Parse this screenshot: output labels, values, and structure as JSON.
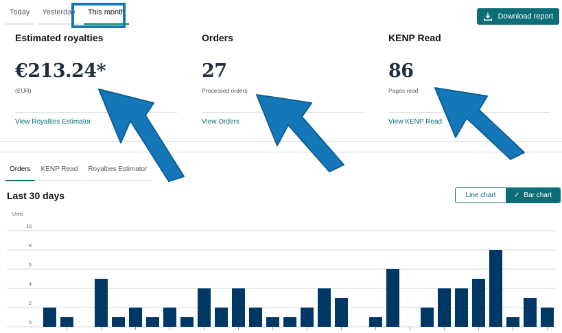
{
  "period_tabs": [
    {
      "label": "Today",
      "active": false
    },
    {
      "label": "Yesterday",
      "active": false
    },
    {
      "label": "This month",
      "active": true
    }
  ],
  "download_label": "Download report",
  "metrics": [
    {
      "title": "Estimated royalties",
      "value": "€213.24*",
      "sub": "(EUR)",
      "link": "View Royalties Estimator"
    },
    {
      "title": "Orders",
      "value": "27",
      "sub": "Processed orders",
      "link": "View Orders"
    },
    {
      "title": "KENP Read",
      "value": "86",
      "sub": "Pages read",
      "link": "View KENP Read"
    }
  ],
  "chart_tabs": [
    {
      "label": "Orders",
      "active": true
    },
    {
      "label": "KENP Read",
      "active": false
    },
    {
      "label": "Royalties Estimator",
      "active": false
    }
  ],
  "section_title": "Last 30 days",
  "toggle": {
    "line_label": "Line chart",
    "bar_label": "Bar chart",
    "selected": "bar"
  },
  "chart_data": {
    "type": "bar",
    "ylabel": "Units",
    "ylim": [
      0,
      10
    ],
    "yticks": [
      0,
      2,
      4,
      6,
      8,
      10
    ],
    "values": [
      2,
      1,
      0,
      5,
      1,
      2,
      1,
      2,
      1,
      4,
      2,
      4,
      2,
      1,
      1,
      2,
      4,
      3,
      0,
      1,
      6,
      0,
      2,
      4,
      4,
      5,
      8,
      1,
      3,
      2
    ],
    "bar_color": "#003865",
    "grid": true
  },
  "colors": {
    "accent": "#0d6d77",
    "annotation": "#1478b8"
  }
}
